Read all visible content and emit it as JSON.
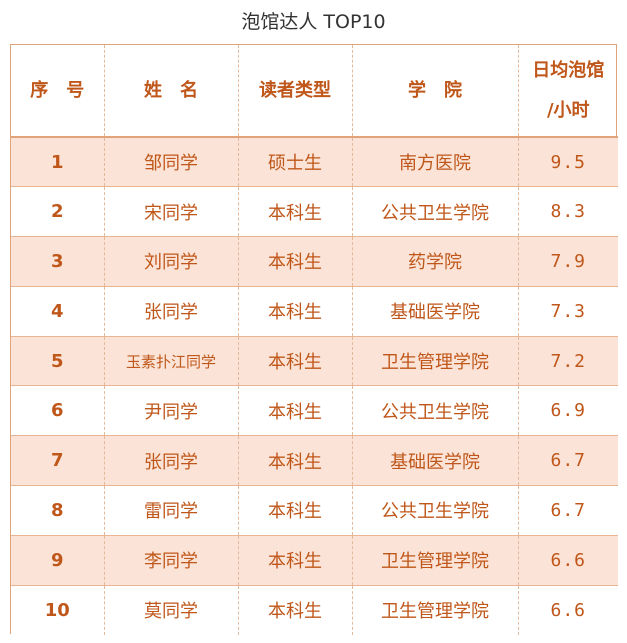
{
  "title": "泡馆达人 TOP10",
  "headers": {
    "rank": "序　号",
    "name": "姓　名",
    "reader_type": "读者类型",
    "college": "学　院",
    "hours_line1": "日均泡馆",
    "hours_line2": "/小时"
  },
  "rows": [
    {
      "rank": "1",
      "name": "邹同学",
      "reader_type": "硕士生",
      "college": "南方医院",
      "hours": "9.5"
    },
    {
      "rank": "2",
      "name": "宋同学",
      "reader_type": "本科生",
      "college": "公共卫生学院",
      "hours": "8.3"
    },
    {
      "rank": "3",
      "name": "刘同学",
      "reader_type": "本科生",
      "college": "药学院",
      "hours": "7.9"
    },
    {
      "rank": "4",
      "name": "张同学",
      "reader_type": "本科生",
      "college": "基础医学院",
      "hours": "7.3"
    },
    {
      "rank": "5",
      "name": "玉素扑江同学",
      "reader_type": "本科生",
      "college": "卫生管理学院",
      "hours": "7.2"
    },
    {
      "rank": "6",
      "name": "尹同学",
      "reader_type": "本科生",
      "college": "公共卫生学院",
      "hours": "6.9"
    },
    {
      "rank": "7",
      "name": "张同学",
      "reader_type": "本科生",
      "college": "基础医学院",
      "hours": "6.7"
    },
    {
      "rank": "8",
      "name": "雷同学",
      "reader_type": "本科生",
      "college": "公共卫生学院",
      "hours": "6.7"
    },
    {
      "rank": "9",
      "name": "李同学",
      "reader_type": "本科生",
      "college": "卫生管理学院",
      "hours": "6.6"
    },
    {
      "rank": "10",
      "name": "莫同学",
      "reader_type": "本科生",
      "college": "卫生管理学院",
      "hours": "6.6"
    }
  ],
  "colors": {
    "text_accent": "#c0571a",
    "row_highlight": "#fbe4d7",
    "border": "#e0a37a"
  }
}
